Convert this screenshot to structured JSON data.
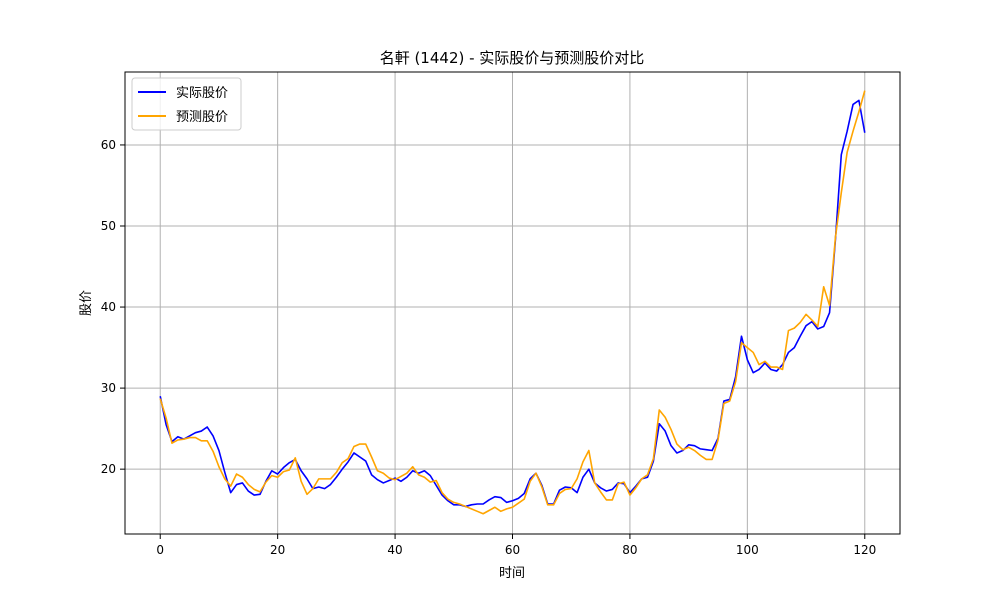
{
  "chart_data": {
    "type": "line",
    "title": "名軒 (1442) - 实际股价与预测股价对比",
    "xlabel": "时间",
    "ylabel": "股价",
    "xlim": [
      -6,
      126
    ],
    "ylim": [
      12,
      69
    ],
    "xticks": [
      0,
      20,
      40,
      60,
      80,
      100,
      120
    ],
    "yticks": [
      20,
      30,
      40,
      50,
      60
    ],
    "grid": true,
    "legend_position": "upper-left",
    "series": [
      {
        "name": "实际股价",
        "color": "#0000ff",
        "values": [
          29.0,
          25.5,
          23.4,
          24.0,
          23.7,
          24.1,
          24.5,
          24.7,
          25.2,
          24.1,
          22.3,
          19.6,
          17.1,
          18.1,
          18.3,
          17.3,
          16.8,
          16.9,
          18.5,
          19.8,
          19.4,
          20.2,
          20.8,
          21.2,
          19.8,
          18.8,
          17.6,
          17.8,
          17.6,
          18.1,
          19.0,
          20.0,
          20.9,
          22.0,
          21.5,
          21.0,
          19.3,
          18.7,
          18.3,
          18.6,
          18.9,
          18.5,
          19.0,
          19.8,
          19.5,
          19.8,
          19.2,
          18.0,
          16.8,
          16.1,
          15.6,
          15.6,
          15.4,
          15.6,
          15.7,
          15.7,
          16.2,
          16.6,
          16.5,
          15.9,
          16.1,
          16.4,
          17.0,
          18.8,
          19.5,
          18.0,
          15.7,
          15.7,
          17.4,
          17.8,
          17.7,
          17.1,
          19.0,
          20.0,
          18.3,
          17.7,
          17.3,
          17.5,
          18.3,
          18.2,
          17.1,
          17.9,
          18.8,
          19.0,
          21.0,
          25.6,
          24.7,
          22.9,
          22.0,
          22.3,
          23.0,
          22.9,
          22.5,
          22.4,
          22.3,
          23.8,
          28.4,
          28.6,
          31.4,
          36.4,
          33.5,
          31.9,
          32.3,
          33.1,
          32.3,
          32.1,
          32.9,
          34.4,
          35.0,
          36.4,
          37.7,
          38.2,
          37.3,
          37.6,
          39.3,
          48.3,
          58.8,
          61.7,
          65.0,
          65.5,
          61.5
        ]
      },
      {
        "name": "预测股价",
        "color": "#ffa500",
        "values": [
          28.7,
          26.3,
          23.2,
          23.6,
          23.7,
          23.9,
          23.9,
          23.5,
          23.5,
          22.2,
          20.3,
          18.8,
          17.9,
          19.4,
          19.0,
          18.1,
          17.5,
          17.2,
          18.4,
          19.2,
          19.0,
          19.7,
          19.9,
          21.4,
          18.5,
          16.9,
          17.6,
          18.8,
          18.8,
          18.8,
          19.6,
          20.8,
          21.3,
          22.8,
          23.1,
          23.1,
          21.5,
          19.8,
          19.5,
          18.9,
          18.7,
          19.1,
          19.5,
          20.3,
          19.3,
          19.0,
          18.4,
          18.6,
          17.1,
          16.3,
          15.9,
          15.7,
          15.4,
          15.1,
          14.8,
          14.5,
          14.9,
          15.3,
          14.8,
          15.1,
          15.3,
          15.8,
          16.3,
          18.5,
          19.5,
          17.8,
          15.6,
          15.6,
          17.0,
          17.5,
          17.6,
          18.8,
          20.9,
          22.3,
          18.3,
          17.2,
          16.2,
          16.2,
          18.2,
          18.4,
          16.8,
          17.7,
          18.8,
          19.3,
          21.3,
          27.3,
          26.4,
          24.9,
          23.1,
          22.4,
          22.7,
          22.3,
          21.7,
          21.2,
          21.2,
          23.6,
          28.1,
          28.4,
          30.8,
          35.6,
          35.0,
          34.4,
          32.9,
          33.3,
          32.6,
          32.6,
          32.3,
          37.1,
          37.4,
          38.1,
          39.1,
          38.4,
          37.6,
          42.5,
          40.2,
          48.6,
          54.1,
          59.1,
          61.7,
          64.1,
          66.7
        ]
      }
    ]
  }
}
